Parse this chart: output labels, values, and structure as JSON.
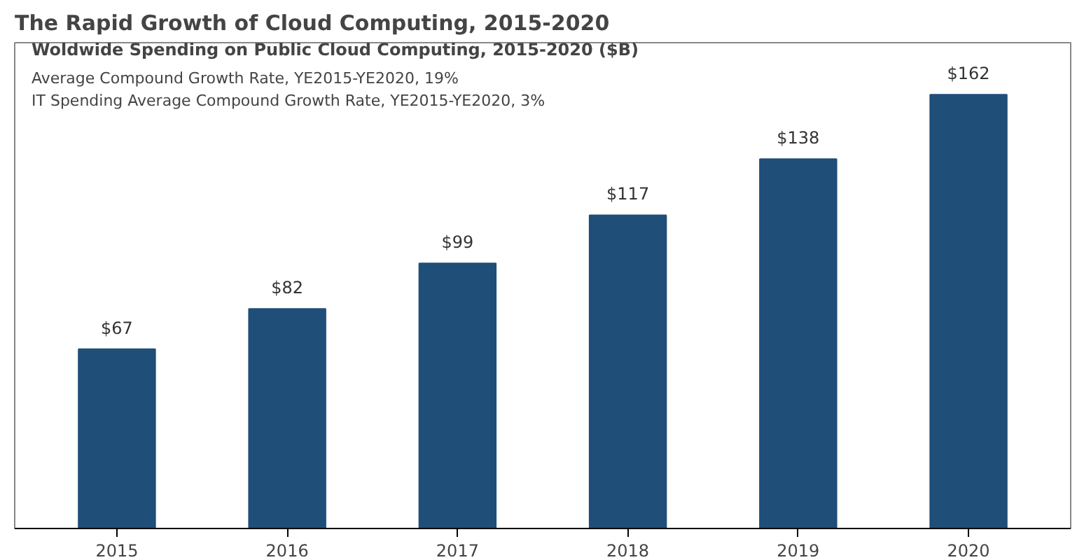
{
  "chart_data": {
    "type": "bar",
    "title": "The Rapid Growth of Cloud Computing, 2015-2020",
    "subtitle": "Woldwide Spending on Public Cloud Computing, 2015-2020 ($B)",
    "annotations": [
      "Average Compound Growth Rate, YE2015-YE2020, 19%",
      "IT Spending  Average Compound Growth Rate, YE2015-YE2020, 3%"
    ],
    "categories": [
      "2015",
      "2016",
      "2017",
      "2018",
      "2019",
      "2020"
    ],
    "values": [
      67,
      82,
      99,
      117,
      138,
      162
    ],
    "value_labels": [
      "$67",
      "$82",
      "$99",
      "$117",
      "$138",
      "$162"
    ],
    "color": "#1f4e79",
    "grid": false
  }
}
